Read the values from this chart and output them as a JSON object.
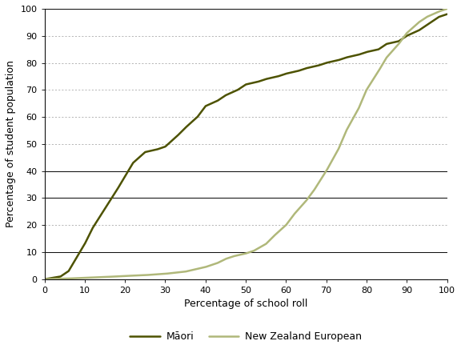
{
  "xlabel": "Percentage of school roll",
  "ylabel": "Percentage of student population",
  "xlim": [
    0,
    100
  ],
  "ylim": [
    0,
    100
  ],
  "xticks": [
    0,
    10,
    20,
    30,
    40,
    50,
    60,
    70,
    80,
    90,
    100
  ],
  "yticks": [
    0,
    10,
    20,
    30,
    40,
    50,
    60,
    70,
    80,
    90,
    100
  ],
  "maori_color": "#4d5200",
  "nze_color": "#b0b87a",
  "legend_labels": [
    "Māori",
    "New Zealand European"
  ],
  "background_color": "#ffffff",
  "solid_grid_yticks": [
    0,
    10,
    30,
    40,
    100
  ],
  "dotted_grid_yticks": [
    20,
    50,
    60,
    70,
    80,
    90
  ],
  "maori_x": [
    0,
    2,
    4,
    6,
    8,
    10,
    12,
    15,
    18,
    20,
    22,
    25,
    28,
    30,
    33,
    35,
    38,
    40,
    43,
    45,
    48,
    50,
    53,
    55,
    58,
    60,
    63,
    65,
    68,
    70,
    73,
    75,
    78,
    80,
    83,
    85,
    88,
    90,
    93,
    95,
    98,
    100
  ],
  "maori_y": [
    0,
    0.5,
    1,
    3,
    8,
    13,
    19,
    26,
    33,
    38,
    43,
    47,
    48,
    49,
    53,
    56,
    60,
    64,
    66,
    68,
    70,
    72,
    73,
    74,
    75,
    76,
    77,
    78,
    79,
    80,
    81,
    82,
    83,
    84,
    85,
    87,
    88,
    90,
    92,
    94,
    97,
    98
  ],
  "nze_x": [
    0,
    5,
    10,
    15,
    20,
    25,
    30,
    35,
    40,
    43,
    45,
    47,
    50,
    52,
    55,
    57,
    60,
    62,
    65,
    67,
    70,
    73,
    75,
    78,
    80,
    83,
    85,
    88,
    90,
    93,
    95,
    98,
    100
  ],
  "nze_y": [
    0,
    0.2,
    0.5,
    0.8,
    1.2,
    1.5,
    2.0,
    2.8,
    4.5,
    6,
    7.5,
    8.5,
    9.5,
    10.5,
    13,
    16,
    20,
    24,
    29,
    33,
    40,
    48,
    55,
    63,
    70,
    77,
    82,
    87,
    91,
    95,
    97,
    99,
    100
  ]
}
